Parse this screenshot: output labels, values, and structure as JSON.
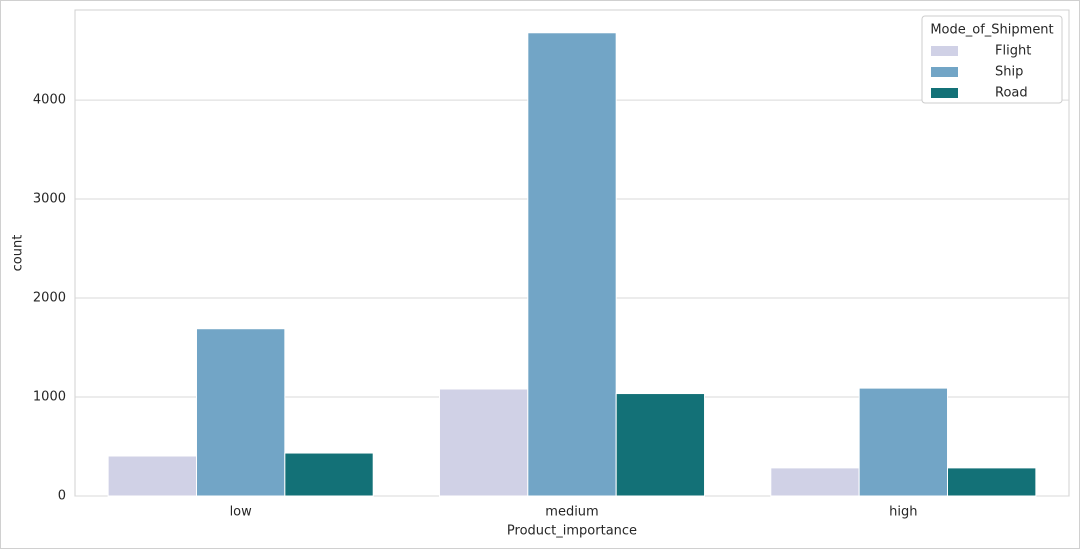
{
  "chart_data": {
    "type": "bar",
    "x_label": "Product_importance",
    "y_label": "count",
    "categories": [
      "low",
      "medium",
      "high"
    ],
    "series": [
      {
        "name": "Flight",
        "color": "#d0d1e6",
        "values": [
          404,
          1081,
          284
        ]
      },
      {
        "name": "Ship",
        "color": "#72a5c6",
        "values": [
          1690,
          4680,
          1090
        ]
      },
      {
        "name": "Road",
        "color": "#137177",
        "values": [
          434,
          1035,
          284
        ]
      }
    ],
    "legend_title": "Mode_of_Shipment",
    "legend": "upper right",
    "ylim": [
      0,
      4910
    ],
    "yticks": [
      0,
      1000,
      2000,
      3000,
      4000
    ],
    "grid": true
  }
}
